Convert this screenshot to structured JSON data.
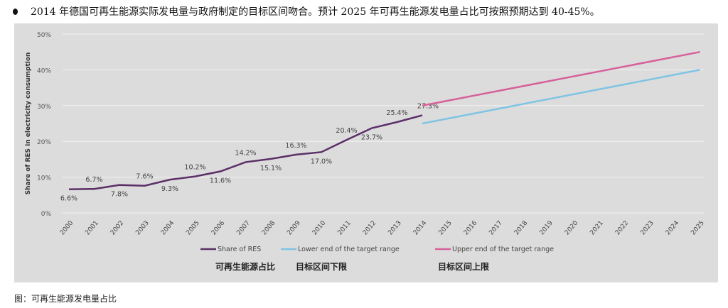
{
  "heading": "2014 年德国可再生能源实际发电量与政府制定的目标区间吻合。预计 2025 年可再生能源发电量占比可按照预期达到 40-45%。",
  "caption": "图：可再生能源发电量占比",
  "chart_data": {
    "type": "line",
    "ylabel": "Share of RES in electricity consumption",
    "xlabel": "",
    "ylim": [
      0,
      50
    ],
    "yticks": [
      "0%",
      "10%",
      "20%",
      "30%",
      "40%",
      "50%"
    ],
    "x": [
      2000,
      2001,
      2002,
      2003,
      2004,
      2005,
      2006,
      2007,
      2008,
      2009,
      2010,
      2011,
      2012,
      2013,
      2014,
      2015,
      2016,
      2017,
      2018,
      2019,
      2020,
      2021,
      2022,
      2023,
      2024,
      2025
    ],
    "grid": true,
    "legend_position": "bottom",
    "series": [
      {
        "name": "Share of RES",
        "name_cn": "可再生能源占比",
        "color": "#5b2f67",
        "x": [
          2000,
          2001,
          2002,
          2003,
          2004,
          2005,
          2006,
          2007,
          2008,
          2009,
          2010,
          2011,
          2012,
          2013,
          2014
        ],
        "values": [
          6.6,
          6.7,
          7.8,
          7.6,
          9.3,
          10.2,
          11.6,
          14.2,
          15.1,
          16.3,
          17.0,
          20.4,
          23.7,
          25.4,
          27.3
        ],
        "labels": [
          "6.6%",
          "6.7%",
          "7.8%",
          "7.6%",
          "9.3%",
          "10.2%",
          "11.6%",
          "14.2%",
          "15.1%",
          "16.3%",
          "17.0%",
          "20.4%",
          "23.7%",
          "25.4%",
          "27.3%"
        ]
      },
      {
        "name": "Lower end of the target range",
        "name_cn": "目标区间下限",
        "color": "#7fc4e4",
        "x": [
          2014,
          2025
        ],
        "values": [
          25,
          40
        ]
      },
      {
        "name": "Upper end of the target range",
        "name_cn": "目标区间上限",
        "color": "#d6609a",
        "x": [
          2014,
          2025
        ],
        "values": [
          30,
          45
        ]
      }
    ]
  }
}
